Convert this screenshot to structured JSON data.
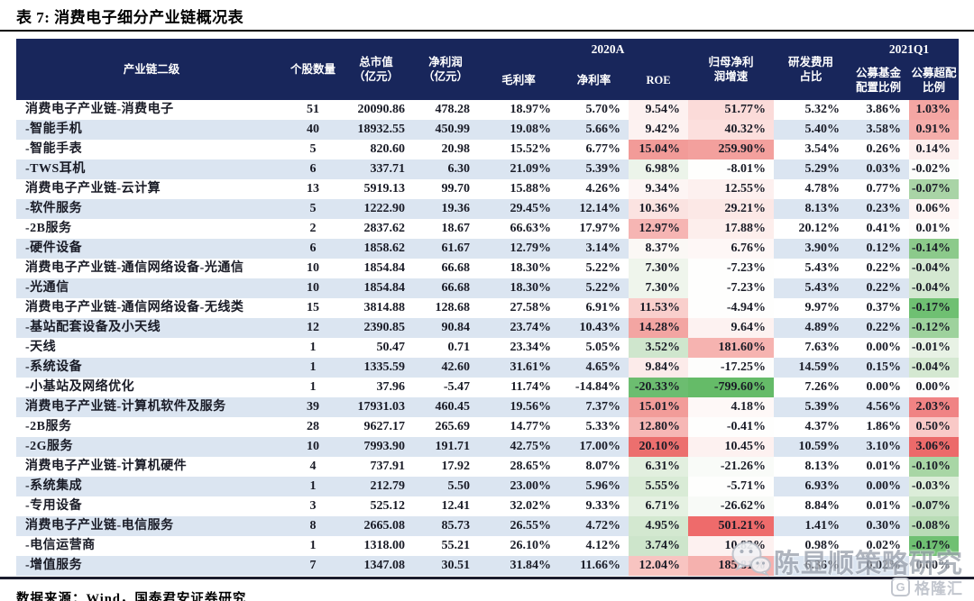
{
  "title": "表 7:  消费电子细分产业链概况表",
  "source": "数据来源：Wind，国泰君安证券研究",
  "watermark": {
    "text": "陈显顺策略研究",
    "icon": "wechat-icon"
  },
  "brand": {
    "icon_letter": "G",
    "name": "格隆汇"
  },
  "colors": {
    "header_bg": "#18265b",
    "stripe": "#dbe5f1",
    "text": "#191b26",
    "rule": "#1b1d2e",
    "highlight_red_strong": "#ec6f6e",
    "highlight_green_strong": "#6cbd70"
  },
  "table": {
    "groups": [
      "2020A",
      "2021Q1"
    ],
    "columns": [
      "产业链二级",
      "个股数量",
      "总市值\n（亿元）",
      "净利润\n（亿元）",
      "毛利率",
      "净利率",
      "ROE",
      "归母净利\n润增速",
      "研发费用\n占比",
      "公募基金\n配置比例",
      "公募超配\n比例"
    ],
    "rows": [
      {
        "cells": [
          "消费电子产业链-消费电子",
          "51",
          "20090.86",
          "478.28",
          "18.97%",
          "5.70%",
          "9.54%",
          "51.77%",
          "5.32%",
          "3.86%",
          "1.03%"
        ],
        "bg": {
          "6": "#fdf1f0",
          "7": "#fbdbd9",
          "10": "#f4a6a3"
        }
      },
      {
        "cells": [
          "-智能手机",
          "40",
          "18932.55",
          "450.99",
          "19.08%",
          "5.66%",
          "9.42%",
          "40.32%",
          "5.40%",
          "3.58%",
          "0.91%"
        ],
        "bg": {
          "6": "#fdf2f1",
          "7": "#fcdfdd",
          "10": "#f5adaa"
        }
      },
      {
        "cells": [
          "-智能手表",
          "5",
          "820.60",
          "20.98",
          "15.52%",
          "6.77%",
          "15.04%",
          "259.90%",
          "3.54%",
          "0.26%",
          "0.14%"
        ],
        "bg": {
          "6": "#f29b98",
          "7": "#f3a09d",
          "10": "#fdefee"
        }
      },
      {
        "cells": [
          "-TWS耳机",
          "6",
          "337.71",
          "6.30",
          "21.09%",
          "5.39%",
          "6.98%",
          "-8.01%",
          "5.29%",
          "0.03%",
          "-0.02%"
        ],
        "bg": {
          "6": "#ecf4ea",
          "7": "#fefefd",
          "10": "#fcfdfb"
        }
      },
      {
        "cells": [
          "消费电子产业链-云计算",
          "13",
          "5919.13",
          "99.70",
          "15.88%",
          "4.26%",
          "9.34%",
          "12.55%",
          "4.78%",
          "0.77%",
          "-0.07%"
        ],
        "bg": {
          "6": "#fdf5f4",
          "7": "#fdf0ef",
          "10": "#a9d4a6"
        }
      },
      {
        "cells": [
          "-软件服务",
          "5",
          "1222.90",
          "19.36",
          "29.45%",
          "12.14%",
          "10.36%",
          "29.21%",
          "8.13%",
          "0.23%",
          "0.06%"
        ],
        "bg": {
          "6": "#fbe3e1",
          "7": "#fce8e6",
          "10": "#fef5f4"
        }
      },
      {
        "cells": [
          "-2B服务",
          "2",
          "2837.62",
          "18.67",
          "66.63%",
          "17.97%",
          "12.97%",
          "17.88%",
          "20.12%",
          "0.41%",
          "0.01%"
        ],
        "bg": {
          "6": "#f6b5b3",
          "7": "#fdeeec",
          "10": "#fefcfb"
        }
      },
      {
        "cells": [
          "-硬件设备",
          "6",
          "1858.62",
          "61.67",
          "12.79%",
          "3.14%",
          "8.37%",
          "6.76%",
          "3.90%",
          "0.12%",
          "-0.14%"
        ],
        "bg": {
          "6": "#fbf8f5",
          "7": "#fef7f6",
          "10": "#8cca8b"
        }
      },
      {
        "cells": [
          "消费电子产业链-通信网络设备-光通信",
          "10",
          "1854.84",
          "66.68",
          "18.30%",
          "5.22%",
          "7.30%",
          "-7.23%",
          "5.43%",
          "0.22%",
          "-0.04%"
        ],
        "bg": {
          "6": "#eff5ec",
          "7": "#fefefd",
          "10": "#d4e8d1"
        }
      },
      {
        "cells": [
          "-光通信",
          "10",
          "1854.84",
          "66.68",
          "18.30%",
          "5.22%",
          "7.30%",
          "-7.23%",
          "5.43%",
          "0.22%",
          "-0.04%"
        ],
        "bg": {
          "6": "#eff5ec",
          "7": "#fefefd",
          "10": "#d4e8d1"
        }
      },
      {
        "cells": [
          "消费电子产业链-通信网络设备-无线类",
          "15",
          "3814.88",
          "128.68",
          "27.58%",
          "6.91%",
          "11.53%",
          "-4.94%",
          "9.97%",
          "0.37%",
          "-0.17%"
        ],
        "bg": {
          "6": "#f9cfcc",
          "7": "#fefefd",
          "10": "#6fc072"
        }
      },
      {
        "cells": [
          "-基站配套设备及小天线",
          "12",
          "2390.85",
          "90.84",
          "23.74%",
          "10.43%",
          "14.28%",
          "9.64%",
          "4.89%",
          "0.22%",
          "-0.12%"
        ],
        "bg": {
          "6": "#f3a5a2",
          "7": "#fdf2f1",
          "10": "#9ed29d"
        }
      },
      {
        "cells": [
          "-天线",
          "1",
          "50.47",
          "0.71",
          "23.34%",
          "5.05%",
          "3.52%",
          "181.60%",
          "7.63%",
          "0.00%",
          "-0.01%"
        ],
        "bg": {
          "6": "#cfe6cd",
          "7": "#f6b3b0",
          "10": "#e8f2e5"
        }
      },
      {
        "cells": [
          "-系统设备",
          "1",
          "1335.59",
          "42.60",
          "31.61%",
          "4.65%",
          "9.84%",
          "-17.25%",
          "14.59%",
          "0.15%",
          "-0.04%"
        ],
        "bg": {
          "6": "#fcebea",
          "7": "#fdfdfc",
          "10": "#d4e8d1"
        }
      },
      {
        "cells": [
          "-小基站及网络优化",
          "1",
          "37.96",
          "-5.47",
          "11.74%",
          "-14.84%",
          "-20.33%",
          "-799.60%",
          "7.26%",
          "0.00%",
          "0.00%"
        ],
        "bg": {
          "6": "#6cbd70",
          "7": "#65bb68",
          "10": "#fdfdfc"
        }
      },
      {
        "cells": [
          "消费电子产业链-计算机软件及服务",
          "39",
          "17931.03",
          "460.45",
          "19.56%",
          "7.37%",
          "15.01%",
          "4.18%",
          "5.39%",
          "4.56%",
          "2.03%"
        ],
        "bg": {
          "6": "#f29c99",
          "7": "#fef8f7",
          "10": "#f08384"
        }
      },
      {
        "cells": [
          "-2B服务",
          "28",
          "9627.17",
          "265.69",
          "14.77%",
          "5.33%",
          "12.80%",
          "-0.41%",
          "4.37%",
          "1.86%",
          "0.50%"
        ],
        "bg": {
          "6": "#f6b7b5",
          "7": "#fefefd",
          "10": "#f9c9c7"
        }
      },
      {
        "cells": [
          "-2G服务",
          "10",
          "7993.90",
          "191.71",
          "42.75%",
          "17.00%",
          "20.10%",
          "10.45%",
          "10.59%",
          "3.10%",
          "3.06%"
        ],
        "bg": {
          "6": "#ec6f6e",
          "7": "#fdf1f0",
          "10": "#ec6a6a"
        }
      },
      {
        "cells": [
          "消费电子产业链-计算机硬件",
          "4",
          "737.91",
          "17.92",
          "28.65%",
          "8.07%",
          "6.31%",
          "-21.26%",
          "8.13%",
          "0.01%",
          "-0.10%"
        ],
        "bg": {
          "6": "#e2efdf",
          "7": "#f9fbf8",
          "10": "#a8d6a5"
        }
      },
      {
        "cells": [
          "-系统集成",
          "1",
          "212.79",
          "5.50",
          "23.00%",
          "5.96%",
          "5.55%",
          "-5.71%",
          "6.93%",
          "0.00%",
          "-0.03%"
        ],
        "bg": {
          "6": "#d9ebd6",
          "7": "#fefefd",
          "10": "#dcedd9"
        }
      },
      {
        "cells": [
          "-专用设备",
          "3",
          "525.12",
          "12.41",
          "32.02%",
          "9.33%",
          "6.71%",
          "-26.62%",
          "8.84%",
          "0.01%",
          "-0.07%"
        ],
        "bg": {
          "6": "#e5f1e2",
          "7": "#f8faf7",
          "10": "#c9e3c6"
        }
      },
      {
        "cells": [
          "消费电子产业链-电信服务",
          "8",
          "2665.08",
          "85.73",
          "26.55%",
          "4.72%",
          "4.95%",
          "501.21%",
          "1.41%",
          "0.30%",
          "-0.08%"
        ],
        "bg": {
          "6": "#d3e8d0",
          "7": "#ee6b6b",
          "10": "#b9dcb6"
        }
      },
      {
        "cells": [
          "-电信运营商",
          "1",
          "1318.00",
          "55.21",
          "26.10%",
          "4.12%",
          "3.74%",
          "10.82%",
          "0.98%",
          "0.02%",
          "-0.17%"
        ],
        "bg": {
          "6": "#cde5cb",
          "7": "#fdf1f0",
          "10": "#6fc072"
        }
      },
      {
        "cells": [
          "-增值服务",
          "7",
          "1347.08",
          "30.51",
          "31.84%",
          "11.66%",
          "12.04%",
          "185.81%",
          "6.36%",
          "0.02%",
          "0.00%"
        ],
        "bg": {
          "6": "#f8c4c1",
          "7": "#f5b1ae",
          "10": "#fdfdfc"
        }
      }
    ]
  }
}
